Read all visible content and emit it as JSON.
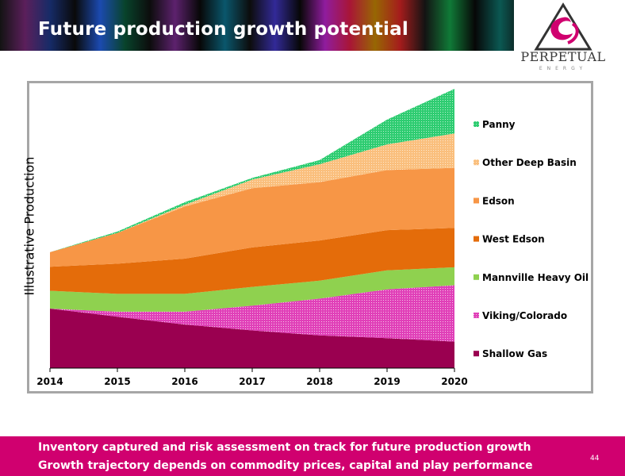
{
  "slide": {
    "title": "Future production growth potential",
    "logo_name": "PERPETUAL",
    "logo_sub": "ENERGY",
    "footer_lines": [
      "Inventory captured and risk assessment on track for future production growth",
      "Growth trajectory depends on commodity prices, capital and play performance"
    ],
    "page_number": "44",
    "colors": {
      "footer": "#d0006f",
      "chart_border": "#a6a6a6"
    }
  },
  "chart_data": {
    "type": "area",
    "stacked": true,
    "ylabel": "Illustrative Production",
    "x": [
      2014,
      2015,
      2016,
      2017,
      2018,
      2019,
      2020
    ],
    "x_tick_labels": [
      "2014",
      "2015",
      "2016",
      "2017",
      "2018",
      "2019",
      "2020"
    ],
    "y_axis_visible": false,
    "ylim": [
      0,
      100
    ],
    "legend_position": "right",
    "legend_order": [
      "Panny",
      "Other Deep Basin",
      "Edson",
      "West Edson",
      "Mannville Heavy Oil",
      "Viking/Colorado",
      "Shallow Gas"
    ],
    "series": [
      {
        "name": "Shallow Gas",
        "color": "#9a0050",
        "pattern": "solid",
        "values": [
          21.3,
          18.4,
          15.6,
          13.5,
          11.7,
          10.7,
          9.5
        ]
      },
      {
        "name": "Viking/Colorado",
        "color": "#e040b8",
        "pattern": "dots",
        "values": [
          0,
          1.8,
          4.6,
          8.9,
          13.2,
          17.5,
          20.2
        ]
      },
      {
        "name": "Mannville Heavy Oil",
        "color": "#8fd14f",
        "pattern": "solid",
        "values": [
          6.4,
          6.4,
          6.4,
          6.7,
          6.4,
          6.8,
          6.4
        ]
      },
      {
        "name": "West Edson",
        "color": "#e46c0a",
        "pattern": "solid",
        "values": [
          8.6,
          10.8,
          12.6,
          14.1,
          14.4,
          14.4,
          14.1
        ]
      },
      {
        "name": "Edson",
        "color": "#f79646",
        "pattern": "solid",
        "values": [
          5.2,
          11.0,
          18.7,
          21.2,
          20.9,
          21.5,
          21.5
        ]
      },
      {
        "name": "Other Deep Basin",
        "color": "#fabf7d",
        "pattern": "dots",
        "values": [
          0,
          0,
          0.6,
          3.1,
          6.4,
          9.2,
          12.3
        ]
      },
      {
        "name": "Panny",
        "color": "#2ecc71",
        "pattern": "dots",
        "values": [
          0,
          0.5,
          0.9,
          0.6,
          1.5,
          8.9,
          16.0
        ]
      }
    ]
  }
}
